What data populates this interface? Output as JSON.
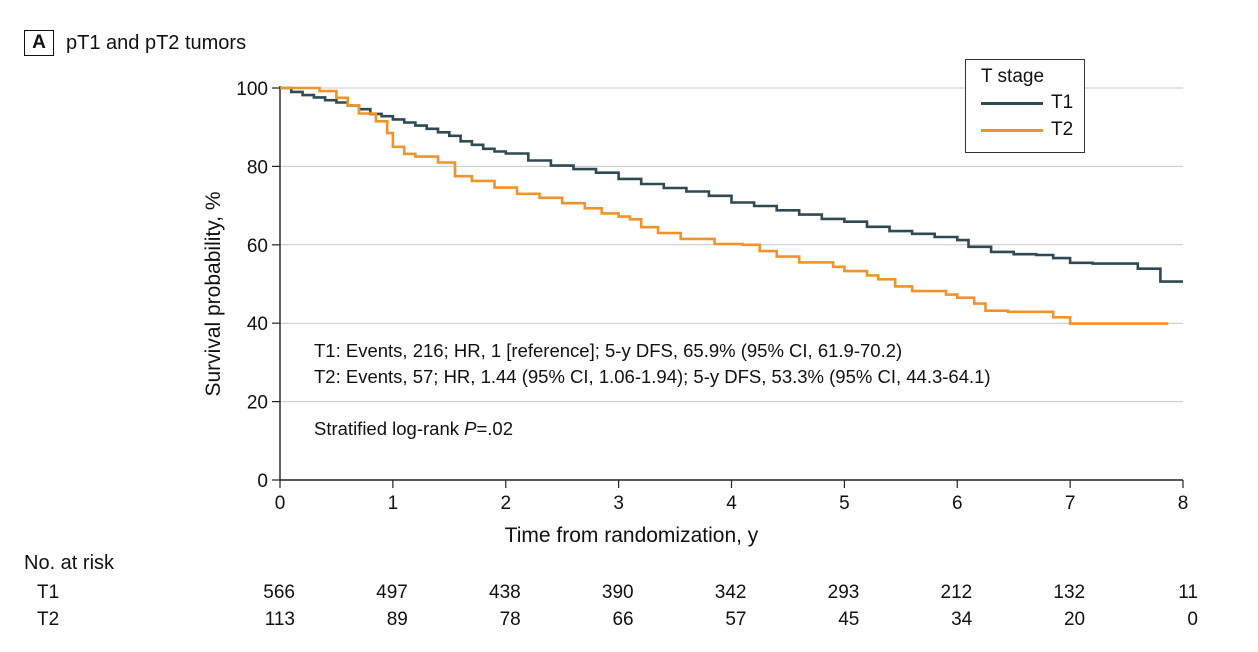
{
  "panel": {
    "letter": "A",
    "title": "pT1 and pT2 tumors"
  },
  "legend": {
    "title": "T stage",
    "items": [
      {
        "label": "T1",
        "color": "#2f4a52"
      },
      {
        "label": "T2",
        "color": "#f0932b"
      }
    ]
  },
  "annotations": {
    "t1_stats": "T1: Events, 216; HR, 1 [reference]; 5-y DFS, 65.9% (95% CI, 61.9-70.2)",
    "t2_stats": "T2: Events, 57; HR, 1.44 (95% CI, 1.06-1.94); 5-y DFS, 53.3% (95% CI, 44.3-64.1)",
    "logrank_prefix": "Stratified log-rank ",
    "logrank_p": "P",
    "logrank_value": "=.02"
  },
  "risk_table": {
    "title": "No. at risk",
    "rows": [
      {
        "label": "T1",
        "values": [
          "566",
          "497",
          "438",
          "390",
          "342",
          "293",
          "212",
          "132",
          "11"
        ]
      },
      {
        "label": "T2",
        "values": [
          "113",
          "89",
          "78",
          "66",
          "57",
          "45",
          "34",
          "20",
          "0"
        ]
      }
    ]
  },
  "chart_data": {
    "type": "line",
    "title": "pT1 and pT2 tumors",
    "xlabel": "Time from randomization, y",
    "ylabel": "Survival probability, %",
    "xlim": [
      0,
      8
    ],
    "ylim": [
      0,
      100
    ],
    "xticks": [
      "0",
      "1",
      "2",
      "3",
      "4",
      "5",
      "6",
      "7",
      "8"
    ],
    "yticks": [
      "0",
      "20",
      "40",
      "60",
      "80",
      "100"
    ],
    "grid": "horizontal",
    "legend_position": "top-right",
    "series": [
      {
        "name": "T1",
        "color": "#2f4a52",
        "x": [
          0,
          0.1,
          0.2,
          0.3,
          0.4,
          0.5,
          0.6,
          0.7,
          0.8,
          0.9,
          1.0,
          1.1,
          1.2,
          1.3,
          1.4,
          1.5,
          1.6,
          1.7,
          1.8,
          1.9,
          2.0,
          2.2,
          2.4,
          2.6,
          2.8,
          3.0,
          3.2,
          3.4,
          3.6,
          3.8,
          4.0,
          4.2,
          4.4,
          4.6,
          4.8,
          5.0,
          5.2,
          5.4,
          5.6,
          5.8,
          6.0,
          6.1,
          6.3,
          6.5,
          6.7,
          6.85,
          7.0,
          7.2,
          7.35,
          7.6,
          7.78,
          7.8,
          7.9,
          8.0
        ],
        "y": [
          100,
          99,
          98.2,
          97.6,
          96.9,
          96.3,
          95.5,
          94.6,
          93.4,
          92.8,
          92.0,
          91.2,
          90.4,
          89.6,
          88.7,
          87.8,
          86.4,
          85.5,
          84.5,
          83.8,
          83.3,
          81.5,
          80.2,
          79.3,
          78.4,
          76.8,
          75.5,
          74.5,
          73.6,
          72.5,
          70.8,
          69.9,
          68.8,
          67.7,
          66.6,
          65.9,
          64.6,
          63.5,
          62.8,
          62.0,
          61.2,
          59.5,
          58.2,
          57.6,
          57.4,
          56.6,
          55.4,
          55.2,
          55.2,
          53.9,
          53.9,
          50.6,
          50.6,
          50.6
        ]
      },
      {
        "name": "T2",
        "color": "#f0932b",
        "x": [
          0,
          0.35,
          0.5,
          0.6,
          0.7,
          0.85,
          0.95,
          1.0,
          1.1,
          1.2,
          1.4,
          1.55,
          1.7,
          1.9,
          2.1,
          2.3,
          2.5,
          2.7,
          2.85,
          3.0,
          3.1,
          3.2,
          3.35,
          3.55,
          3.85,
          4.1,
          4.25,
          4.4,
          4.6,
          4.9,
          5.0,
          5.2,
          5.3,
          5.45,
          5.6,
          5.9,
          6.0,
          6.15,
          6.25,
          6.45,
          6.7,
          6.85,
          7.0,
          7.4,
          7.87
        ],
        "y": [
          100,
          99.2,
          97.5,
          95.5,
          93.5,
          91.5,
          88.5,
          85.0,
          83.2,
          82.5,
          81.0,
          77.5,
          76.3,
          74.6,
          73.0,
          72.0,
          70.6,
          69.3,
          68.0,
          67.2,
          66.5,
          64.5,
          63.0,
          61.5,
          60.2,
          60.0,
          58.4,
          57.0,
          55.5,
          54.4,
          53.3,
          52.2,
          51.2,
          49.4,
          48.2,
          47.3,
          46.5,
          45.0,
          43.2,
          42.9,
          42.9,
          41.5,
          39.9,
          39.9,
          39.9
        ]
      }
    ]
  }
}
